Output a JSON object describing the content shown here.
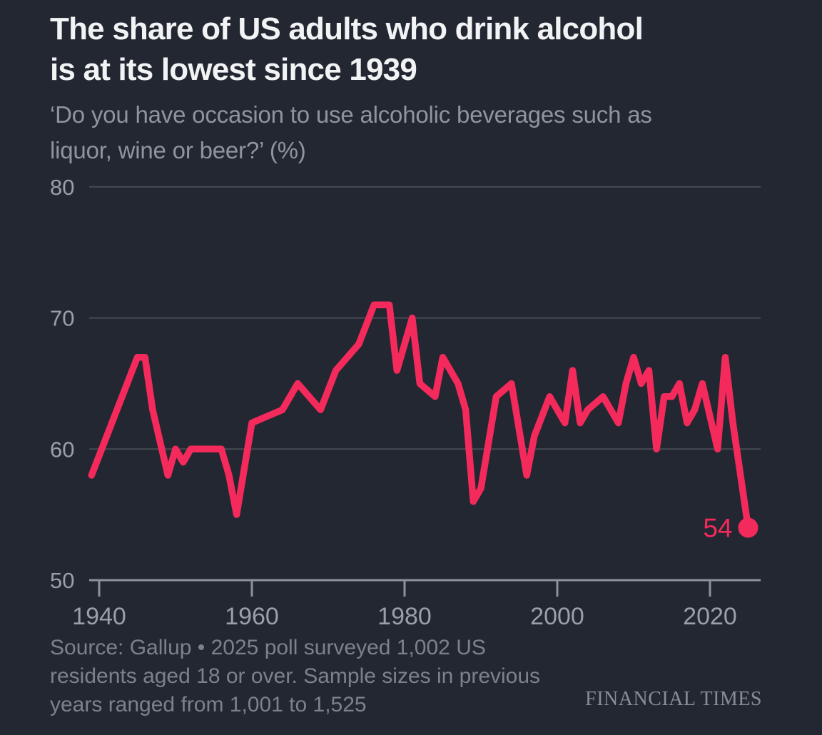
{
  "header": {
    "title_line1": "The share of US adults who drink alcohol",
    "title_line2": "is at its lowest since 1939",
    "subtitle_line1": "‘Do you have occasion to use alcoholic beverages such as",
    "subtitle_line2": "liquor, wine or beer?’ (%)"
  },
  "chart_data": {
    "type": "line",
    "title": "The share of US adults who drink alcohol is at its lowest since 1939",
    "subtitle": "‘Do you have occasion to use alcoholic beverages such as liquor, wine or beer?’ (%)",
    "xlabel": "",
    "ylabel": "%",
    "ylim": [
      50,
      80
    ],
    "xlim": [
      1938.5,
      2026.5
    ],
    "yticks": [
      80,
      70,
      60,
      50
    ],
    "xticks": [
      1940,
      1960,
      1980,
      2000,
      2020
    ],
    "grid": "horizontal",
    "legend_position": "none",
    "series": [
      {
        "name": "Share of US adults who drink alcohol (%)",
        "x": [
          1939,
          1945,
          1946,
          1947,
          1949,
          1950,
          1951,
          1952,
          1956,
          1957,
          1958,
          1960,
          1964,
          1966,
          1969,
          1971,
          1974,
          1976,
          1978,
          1979,
          1981,
          1982,
          1984,
          1985,
          1987,
          1988,
          1989,
          1990,
          1992,
          1994,
          1996,
          1997,
          1999,
          2000,
          2001,
          2002,
          2003,
          2004,
          2006,
          2008,
          2009,
          2010,
          2011,
          2012,
          2013,
          2014,
          2015,
          2016,
          2017,
          2018,
          2019,
          2021,
          2022,
          2023,
          2024,
          2025
        ],
        "y": [
          58,
          67,
          67,
          63,
          58,
          60,
          59,
          60,
          60,
          58,
          55,
          62,
          63,
          65,
          63,
          66,
          68,
          71,
          71,
          66,
          70,
          65,
          64,
          67,
          65,
          63,
          56,
          57,
          64,
          65,
          58,
          61,
          64,
          63,
          62,
          66,
          62,
          63,
          64,
          62,
          65,
          67,
          65,
          66,
          60,
          64,
          64,
          65,
          62,
          63,
          65,
          60,
          67,
          62,
          58,
          54
        ]
      }
    ],
    "end_label": {
      "text": "54",
      "year": 2025,
      "value": 54
    }
  },
  "footer": {
    "source_line1": "Source: Gallup • 2025 poll surveyed 1,002 US",
    "source_line2": "residents aged 18 or over. Sample sizes in previous",
    "source_line3": "years ranged from 1,001 to 1,525",
    "branding": "FINANCIAL TIMES"
  },
  "colors": {
    "background": "#232731",
    "accent": "#f42a5c",
    "title": "#f2f3f5",
    "subtitle": "#8f959f",
    "axis_label": "#98a0aa",
    "gridline": "#454a53",
    "axis_line": "#8d939d",
    "source": "#7c828c",
    "branding": "#878d96"
  }
}
